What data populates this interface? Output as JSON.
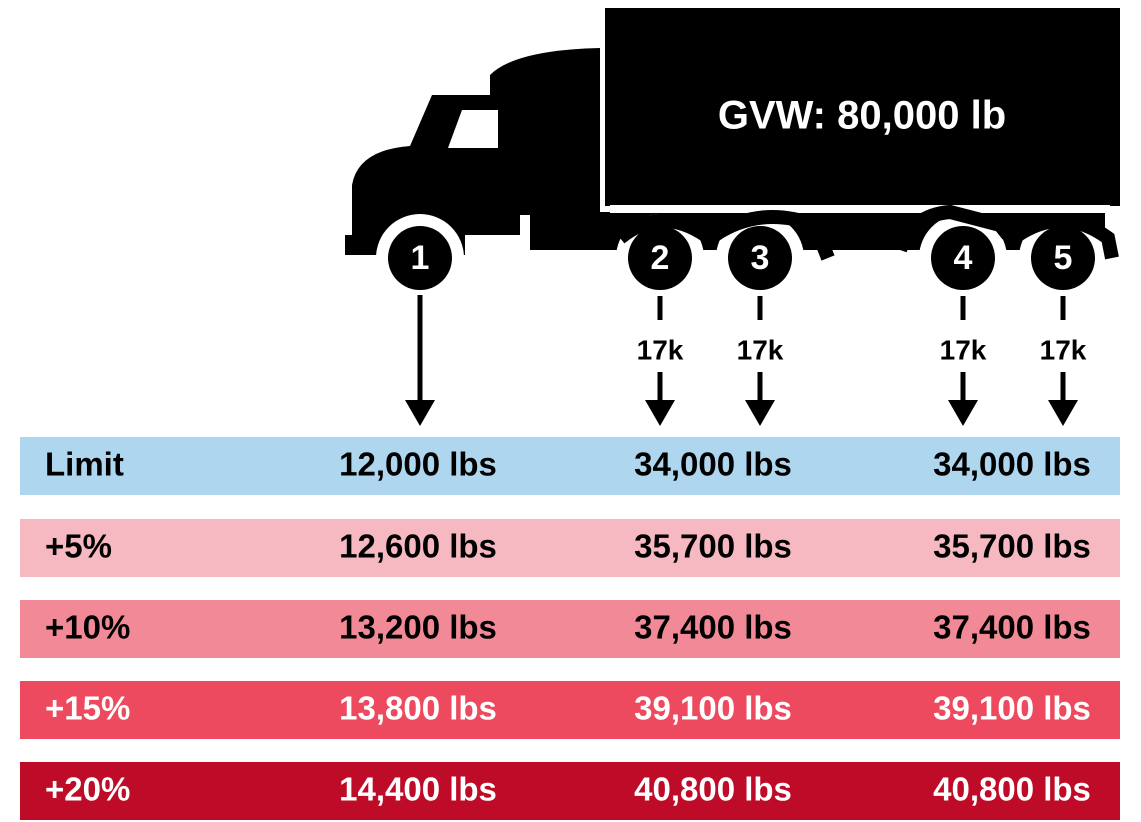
{
  "truck": {
    "gvw_label": "GVW: 80,000 lb",
    "axles": [
      {
        "number": "1"
      },
      {
        "number": "2",
        "load": "17k"
      },
      {
        "number": "3",
        "load": "17k"
      },
      {
        "number": "4",
        "load": "17k"
      },
      {
        "number": "5",
        "load": "17k"
      }
    ]
  },
  "table": {
    "rows": [
      {
        "label": "Limit",
        "values": [
          "12,000 lbs",
          "34,000 lbs",
          "34,000 lbs"
        ]
      },
      {
        "label": "+5%",
        "values": [
          "12,600 lbs",
          "35,700 lbs",
          "35,700 lbs"
        ]
      },
      {
        "label": "+10%",
        "values": [
          "13,200 lbs",
          "37,400 lbs",
          "37,400 lbs"
        ]
      },
      {
        "label": "+15%",
        "values": [
          "13,800 lbs",
          "39,100 lbs",
          "39,100 lbs"
        ]
      },
      {
        "label": "+20%",
        "values": [
          "14,400 lbs",
          "40,800 lbs",
          "40,800 lbs"
        ]
      }
    ]
  }
}
